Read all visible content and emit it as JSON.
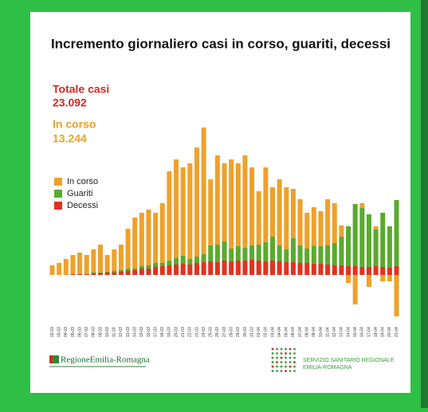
{
  "chart_data": {
    "type": "bar",
    "stacked": true,
    "title": "Incremento giornaliero casi in corso, guariti, decessi",
    "summary": [
      {
        "name": "Totale casi",
        "text": "23.092",
        "color": "#d42a1e"
      },
      {
        "name": "In corso",
        "text": "13.244",
        "color": "#e9a128"
      }
    ],
    "categories": [
      "02-03",
      "03-03",
      "04-03",
      "05-03",
      "06-03",
      "07-03",
      "08-03",
      "09-03",
      "10-03",
      "11-03",
      "12-03",
      "13-03",
      "14-03",
      "15-03",
      "16-03",
      "17-03",
      "18-03",
      "19-03",
      "20-03",
      "21-03",
      "22-03",
      "23-03",
      "24-03",
      "25-03",
      "26-03",
      "27-03",
      "28-03",
      "29-03",
      "30-03",
      "31-03",
      "01-04",
      "02-04",
      "03-04",
      "04-04",
      "05-04",
      "06-04",
      "07-04",
      "08-04",
      "09-04",
      "10-04",
      "11-04",
      "12-04",
      "13-04",
      "14-04",
      "15-04",
      "16-04",
      "17-04",
      "18-04",
      "19-04",
      "20-04",
      "21-04"
    ],
    "series": [
      {
        "name": "In corso",
        "color": "#efa12b",
        "values": [
          60,
          75,
          100,
          120,
          135,
          120,
          145,
          175,
          105,
          135,
          160,
          250,
          320,
          335,
          350,
          315,
          375,
          560,
          620,
          555,
          600,
          685,
          795,
          415,
          560,
          490,
          560,
          520,
          580,
          490,
          335,
          470,
          310,
          415,
          390,
          310,
          290,
          225,
          245,
          220,
          290,
          250,
          70,
          -50,
          -185,
          30,
          -75,
          20,
          -40,
          -40,
          -260
        ]
      },
      {
        "name": "Guariti",
        "color": "#5aaa2e",
        "values": [
          0,
          0,
          0,
          0,
          0,
          0,
          5,
          5,
          5,
          10,
          10,
          15,
          10,
          15,
          20,
          25,
          20,
          30,
          40,
          50,
          35,
          40,
          50,
          100,
          110,
          120,
          80,
          90,
          80,
          90,
          100,
          120,
          150,
          100,
          80,
          150,
          110,
          90,
          110,
          110,
          120,
          140,
          180,
          250,
          390,
          370,
          330,
          230,
          340,
          260,
          415
        ]
      },
      {
        "name": "Decessi",
        "color": "#e2321f",
        "values": [
          0,
          0,
          0,
          5,
          5,
          5,
          10,
          10,
          15,
          15,
          20,
          25,
          30,
          40,
          40,
          50,
          55,
          60,
          65,
          70,
          65,
          75,
          80,
          85,
          80,
          90,
          85,
          90,
          90,
          95,
          90,
          85,
          90,
          85,
          80,
          80,
          75,
          75,
          70,
          70,
          65,
          60,
          60,
          55,
          55,
          50,
          50,
          55,
          50,
          45,
          55
        ]
      }
    ],
    "ylim": [
      -300,
      950
    ]
  },
  "footer": {
    "region": "RegioneEmilia-Romagna",
    "service": "SERVIZIO SANITARIO REGIONALE",
    "service_region": "EMILIA-ROMAGNA"
  }
}
